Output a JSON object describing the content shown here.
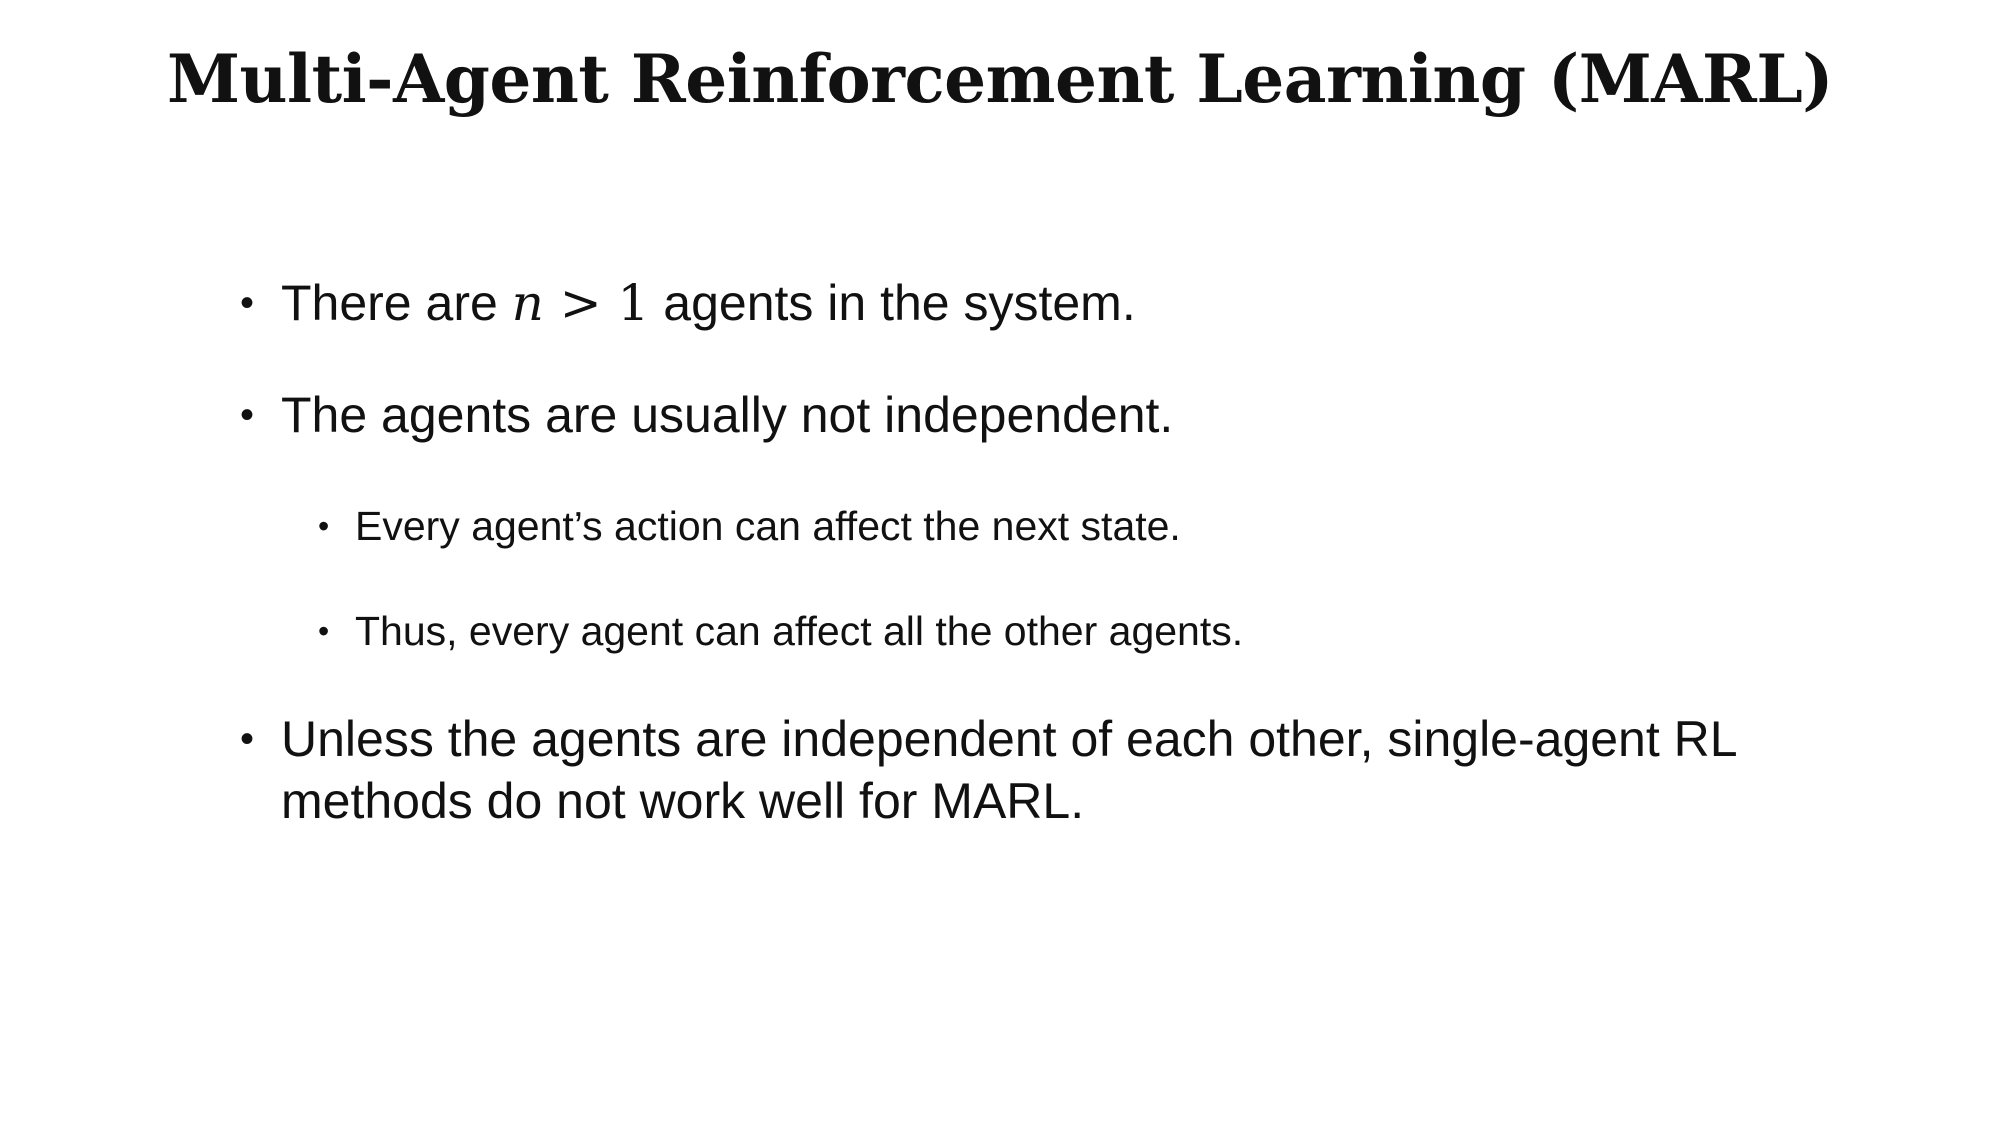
{
  "slide": {
    "title": "Multi-Agent Reinforcement Learning (MARL)",
    "bullet_symbol": "•",
    "bullets": [
      {
        "level": 1,
        "text_before": "There are ",
        "math_var": "n",
        "math_rest": " > 1",
        "text_after": " agents in the system."
      },
      {
        "level": 1,
        "text": "The agents are usually not independent."
      },
      {
        "level": 2,
        "text": "Every agent’s action can affect the next state."
      },
      {
        "level": 2,
        "text": "Thus, every agent can affect all the other agents."
      },
      {
        "level": 1,
        "text": "Unless the agents are independent of each other, single-agent RL methods do not work well for MARL."
      }
    ]
  }
}
